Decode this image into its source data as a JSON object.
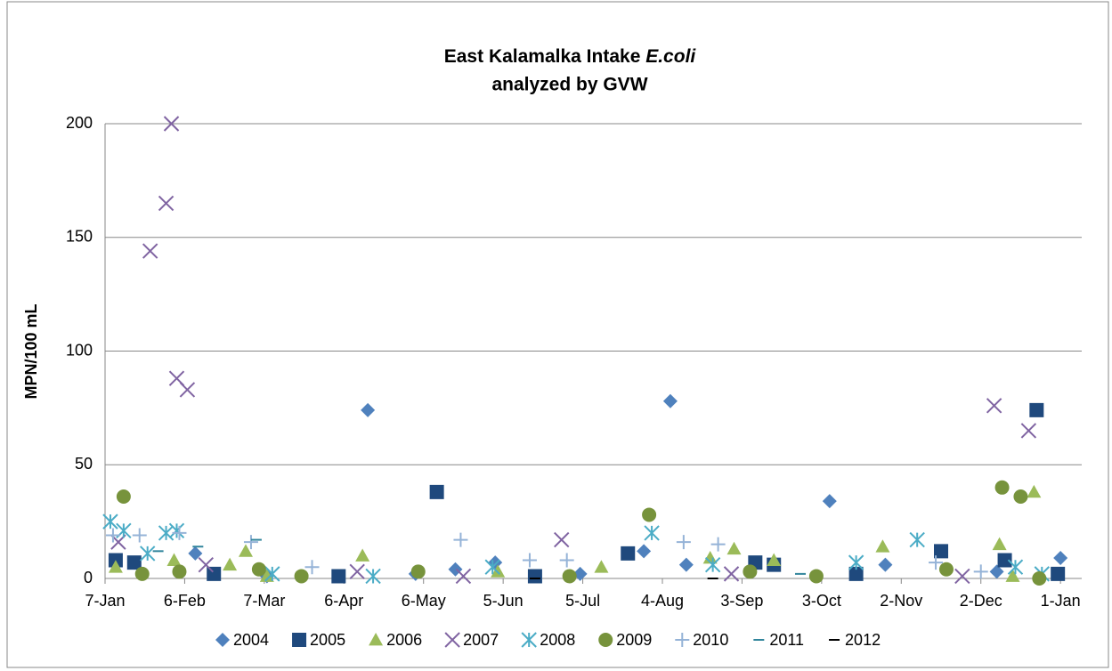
{
  "chart_data": {
    "type": "scatter",
    "title": {
      "text": "East Kalamalka Intake",
      "italic": "E.coli"
    },
    "subtitle": "analyzed by GVW",
    "y_label": "MPN/100 mL",
    "xlim": [
      7,
      375
    ],
    "xticks": [
      {
        "value": 7,
        "label": "7-Jan"
      },
      {
        "value": 37,
        "label": "6-Feb"
      },
      {
        "value": 67,
        "label": "7-Mar"
      },
      {
        "value": 97,
        "label": "6-Apr"
      },
      {
        "value": 127,
        "label": "6-May"
      },
      {
        "value": 157,
        "label": "5-Jun"
      },
      {
        "value": 187,
        "label": "5-Jul"
      },
      {
        "value": 217,
        "label": "4-Aug"
      },
      {
        "value": 247,
        "label": "3-Sep"
      },
      {
        "value": 277,
        "label": "3-Oct"
      },
      {
        "value": 307,
        "label": "2-Nov"
      },
      {
        "value": 337,
        "label": "2-Dec"
      },
      {
        "value": 367,
        "label": "1-Jan"
      }
    ],
    "ylim": [
      0,
      200
    ],
    "yticks": [
      0,
      50,
      100,
      150,
      200
    ],
    "grid": true,
    "legend": "bottom",
    "series": [
      {
        "name": "2004",
        "color": "#4f81bd",
        "marker": "diamond",
        "x": [
          41,
          106,
          220,
          210,
          154,
          280,
          367,
          226,
          301,
          124,
          139,
          343,
          68,
          186
        ],
        "values": [
          11,
          74,
          78,
          12,
          7,
          34,
          9,
          6,
          6,
          2,
          4,
          3,
          1,
          2
        ]
      },
      {
        "name": "2005",
        "color": "#1f497d",
        "marker": "square",
        "x": [
          11,
          18,
          132,
          204,
          358,
          366,
          322,
          346,
          252,
          259,
          48,
          95,
          169,
          290
        ],
        "values": [
          8,
          7,
          38,
          11,
          74,
          2,
          12,
          8,
          7,
          6,
          2,
          1,
          1,
          2
        ]
      },
      {
        "name": "2006",
        "color": "#9bbb59",
        "marker": "triangle",
        "x": [
          11,
          33,
          54,
          60,
          104,
          194,
          235,
          244,
          300,
          344,
          357,
          349,
          259,
          155,
          68
        ],
        "values": [
          5,
          8,
          6,
          12,
          10,
          5,
          9,
          13,
          14,
          15,
          38,
          1,
          8,
          3,
          1
        ]
      },
      {
        "name": "2007",
        "color": "#8064a2",
        "marker": "x",
        "x": [
          12,
          24,
          30,
          32,
          34,
          38,
          45,
          102,
          179,
          243,
          342,
          355,
          330,
          142
        ],
        "values": [
          16,
          144,
          165,
          200,
          88,
          83,
          6,
          3,
          17,
          2,
          76,
          65,
          1,
          1
        ]
      },
      {
        "name": "2008",
        "color": "#4bacc6",
        "marker": "star",
        "x": [
          9,
          14,
          23,
          30,
          34,
          70,
          153,
          213,
          236,
          290,
          313,
          350,
          360,
          108
        ],
        "values": [
          25,
          21,
          11,
          20,
          21,
          2,
          5,
          20,
          6,
          7,
          17,
          5,
          2,
          1
        ]
      },
      {
        "name": "2009",
        "color": "#77933c",
        "marker": "circle",
        "x": [
          14,
          21,
          35,
          65,
          125,
          182,
          212,
          250,
          324,
          345,
          352,
          359,
          275,
          81
        ],
        "values": [
          36,
          2,
          3,
          4,
          3,
          1,
          28,
          3,
          4,
          40,
          36,
          0,
          1,
          1
        ]
      },
      {
        "name": "2010",
        "color": "#95b3d7",
        "marker": "plus",
        "x": [
          10,
          20,
          35,
          62,
          85,
          141,
          181,
          225,
          238,
          320,
          337,
          167
        ],
        "values": [
          19,
          19,
          20,
          16,
          5,
          17,
          8,
          16,
          15,
          7,
          3,
          8
        ]
      },
      {
        "name": "2011",
        "color": "#31859c",
        "marker": "dash",
        "x": [
          27,
          42,
          64,
          269
        ],
        "values": [
          12,
          14,
          17,
          2
        ]
      },
      {
        "name": "2012",
        "color": "#000000",
        "marker": "dash",
        "x": [
          169,
          236
        ],
        "values": [
          0,
          0
        ]
      }
    ]
  }
}
